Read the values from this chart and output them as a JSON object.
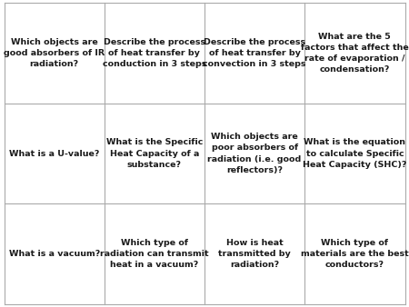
{
  "rows": 3,
  "cols": 4,
  "bg_color": "#ffffff",
  "border_color": "#aaaaaa",
  "text_color": "#1a1a1a",
  "font_size": 6.8,
  "cells": [
    [
      "Which objects are\ngood absorbers of IR\nradiation?",
      "Describe the process\nof heat transfer by\nconduction in 3 steps",
      "Describe the process\nof heat transfer by\nconvection in 3 steps",
      "What are the 5\nfactors that affect the\nrate of evaporation /\ncondensation?"
    ],
    [
      "What is a U-value?",
      "What is the Specific\nHeat Capacity of a\nsubstance?",
      "Which objects are\npoor absorbers of\nradiation (i.e. good\nreflectors)?",
      "What is the equation\nto calculate Specific\nHeat Capacity (SHC)?"
    ],
    [
      "What is a vacuum?",
      "Which type of\nradiation can transmit\nheat in a vacuum?",
      "How is heat\ntransmitted by\nradiation?",
      "Which type of\nmaterials are the best\nconductors?"
    ]
  ]
}
